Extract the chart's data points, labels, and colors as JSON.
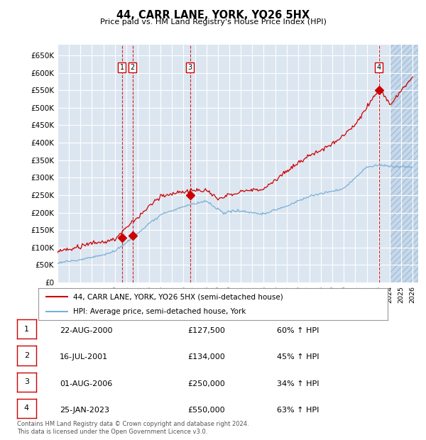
{
  "title": "44, CARR LANE, YORK, YO26 5HX",
  "subtitle": "Price paid vs. HM Land Registry's House Price Index (HPI)",
  "xlim_start": 1995.0,
  "xlim_end": 2026.5,
  "ylim_min": 0,
  "ylim_max": 680000,
  "yticks": [
    0,
    50000,
    100000,
    150000,
    200000,
    250000,
    300000,
    350000,
    400000,
    450000,
    500000,
    550000,
    600000,
    650000
  ],
  "ytick_labels": [
    "£0",
    "£50K",
    "£100K",
    "£150K",
    "£200K",
    "£250K",
    "£300K",
    "£350K",
    "£400K",
    "£450K",
    "£500K",
    "£550K",
    "£600K",
    "£650K"
  ],
  "background_color": "#ffffff",
  "plot_bg_color": "#dce6f1",
  "grid_color": "#ffffff",
  "red_line_color": "#cc0000",
  "blue_line_color": "#7ab0d4",
  "vline_color": "#cc0000",
  "box_edge_color": "#cc0000",
  "transactions": [
    {
      "num": 1,
      "year": 2000.62,
      "price": 127500,
      "label": "1"
    },
    {
      "num": 2,
      "year": 2001.54,
      "price": 134000,
      "label": "2"
    },
    {
      "num": 3,
      "year": 2006.58,
      "price": 250000,
      "label": "3"
    },
    {
      "num": 4,
      "year": 2023.07,
      "price": 550000,
      "label": "4"
    }
  ],
  "table_rows": [
    {
      "num": "1",
      "date": "22-AUG-2000",
      "price": "£127,500",
      "hpi": "60% ↑ HPI"
    },
    {
      "num": "2",
      "date": "16-JUL-2001",
      "price": "£134,000",
      "hpi": "45% ↑ HPI"
    },
    {
      "num": "3",
      "date": "01-AUG-2006",
      "price": "£250,000",
      "hpi": "34% ↑ HPI"
    },
    {
      "num": "4",
      "date": "25-JAN-2023",
      "price": "£550,000",
      "hpi": "63% ↑ HPI"
    }
  ],
  "legend_line1": "44, CARR LANE, YORK, YO26 5HX (semi-detached house)",
  "legend_line2": "HPI: Average price, semi-detached house, York",
  "footnote": "Contains HM Land Registry data © Crown copyright and database right 2024.\nThis data is licensed under the Open Government Licence v3.0."
}
